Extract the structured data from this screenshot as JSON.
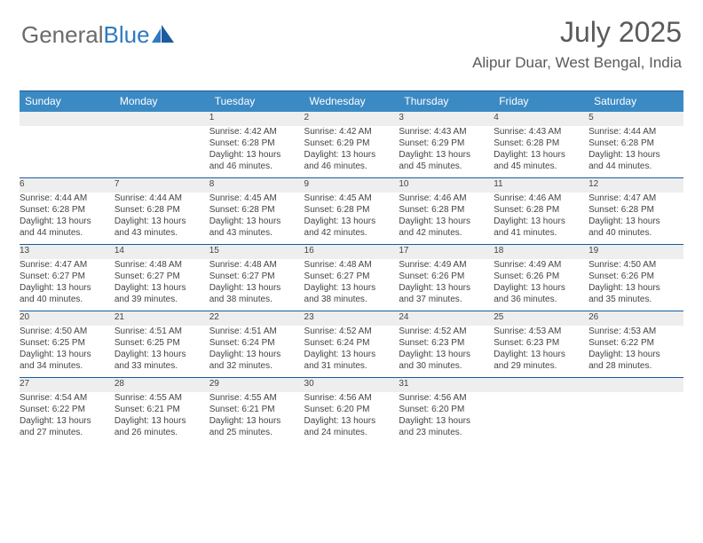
{
  "logo": {
    "word1": "General",
    "word2": "Blue"
  },
  "header": {
    "month_title": "July 2025",
    "location": "Alipur Duar, West Bengal, India"
  },
  "styling": {
    "header_bg": "#3b8ac4",
    "header_text": "#ffffff",
    "rule_color": "#1a5c9e",
    "daynum_bg": "#eeeeee",
    "page_bg": "#ffffff",
    "text_color": "#444444",
    "title_color": "#5a5a5a"
  },
  "labels": {
    "sunrise": "Sunrise:",
    "sunset": "Sunset:",
    "daylight1": "Daylight: 13 hours",
    "minutes_word": "minutes."
  },
  "day_headers": [
    "Sunday",
    "Monday",
    "Tuesday",
    "Wednesday",
    "Thursday",
    "Friday",
    "Saturday"
  ],
  "weeks": [
    {
      "days": [
        null,
        null,
        {
          "n": "1",
          "rise": "4:42 AM",
          "set": "6:28 PM",
          "min": "46"
        },
        {
          "n": "2",
          "rise": "4:42 AM",
          "set": "6:29 PM",
          "min": "46"
        },
        {
          "n": "3",
          "rise": "4:43 AM",
          "set": "6:29 PM",
          "min": "45"
        },
        {
          "n": "4",
          "rise": "4:43 AM",
          "set": "6:28 PM",
          "min": "45"
        },
        {
          "n": "5",
          "rise": "4:44 AM",
          "set": "6:28 PM",
          "min": "44"
        }
      ]
    },
    {
      "days": [
        {
          "n": "6",
          "rise": "4:44 AM",
          "set": "6:28 PM",
          "min": "44"
        },
        {
          "n": "7",
          "rise": "4:44 AM",
          "set": "6:28 PM",
          "min": "43"
        },
        {
          "n": "8",
          "rise": "4:45 AM",
          "set": "6:28 PM",
          "min": "43"
        },
        {
          "n": "9",
          "rise": "4:45 AM",
          "set": "6:28 PM",
          "min": "42"
        },
        {
          "n": "10",
          "rise": "4:46 AM",
          "set": "6:28 PM",
          "min": "42"
        },
        {
          "n": "11",
          "rise": "4:46 AM",
          "set": "6:28 PM",
          "min": "41"
        },
        {
          "n": "12",
          "rise": "4:47 AM",
          "set": "6:28 PM",
          "min": "40"
        }
      ]
    },
    {
      "days": [
        {
          "n": "13",
          "rise": "4:47 AM",
          "set": "6:27 PM",
          "min": "40"
        },
        {
          "n": "14",
          "rise": "4:48 AM",
          "set": "6:27 PM",
          "min": "39"
        },
        {
          "n": "15",
          "rise": "4:48 AM",
          "set": "6:27 PM",
          "min": "38"
        },
        {
          "n": "16",
          "rise": "4:48 AM",
          "set": "6:27 PM",
          "min": "38"
        },
        {
          "n": "17",
          "rise": "4:49 AM",
          "set": "6:26 PM",
          "min": "37"
        },
        {
          "n": "18",
          "rise": "4:49 AM",
          "set": "6:26 PM",
          "min": "36"
        },
        {
          "n": "19",
          "rise": "4:50 AM",
          "set": "6:26 PM",
          "min": "35"
        }
      ]
    },
    {
      "days": [
        {
          "n": "20",
          "rise": "4:50 AM",
          "set": "6:25 PM",
          "min": "34"
        },
        {
          "n": "21",
          "rise": "4:51 AM",
          "set": "6:25 PM",
          "min": "33"
        },
        {
          "n": "22",
          "rise": "4:51 AM",
          "set": "6:24 PM",
          "min": "32"
        },
        {
          "n": "23",
          "rise": "4:52 AM",
          "set": "6:24 PM",
          "min": "31"
        },
        {
          "n": "24",
          "rise": "4:52 AM",
          "set": "6:23 PM",
          "min": "30"
        },
        {
          "n": "25",
          "rise": "4:53 AM",
          "set": "6:23 PM",
          "min": "29"
        },
        {
          "n": "26",
          "rise": "4:53 AM",
          "set": "6:22 PM",
          "min": "28"
        }
      ]
    },
    {
      "days": [
        {
          "n": "27",
          "rise": "4:54 AM",
          "set": "6:22 PM",
          "min": "27"
        },
        {
          "n": "28",
          "rise": "4:55 AM",
          "set": "6:21 PM",
          "min": "26"
        },
        {
          "n": "29",
          "rise": "4:55 AM",
          "set": "6:21 PM",
          "min": "25"
        },
        {
          "n": "30",
          "rise": "4:56 AM",
          "set": "6:20 PM",
          "min": "24"
        },
        {
          "n": "31",
          "rise": "4:56 AM",
          "set": "6:20 PM",
          "min": "23"
        },
        null,
        null
      ]
    }
  ]
}
